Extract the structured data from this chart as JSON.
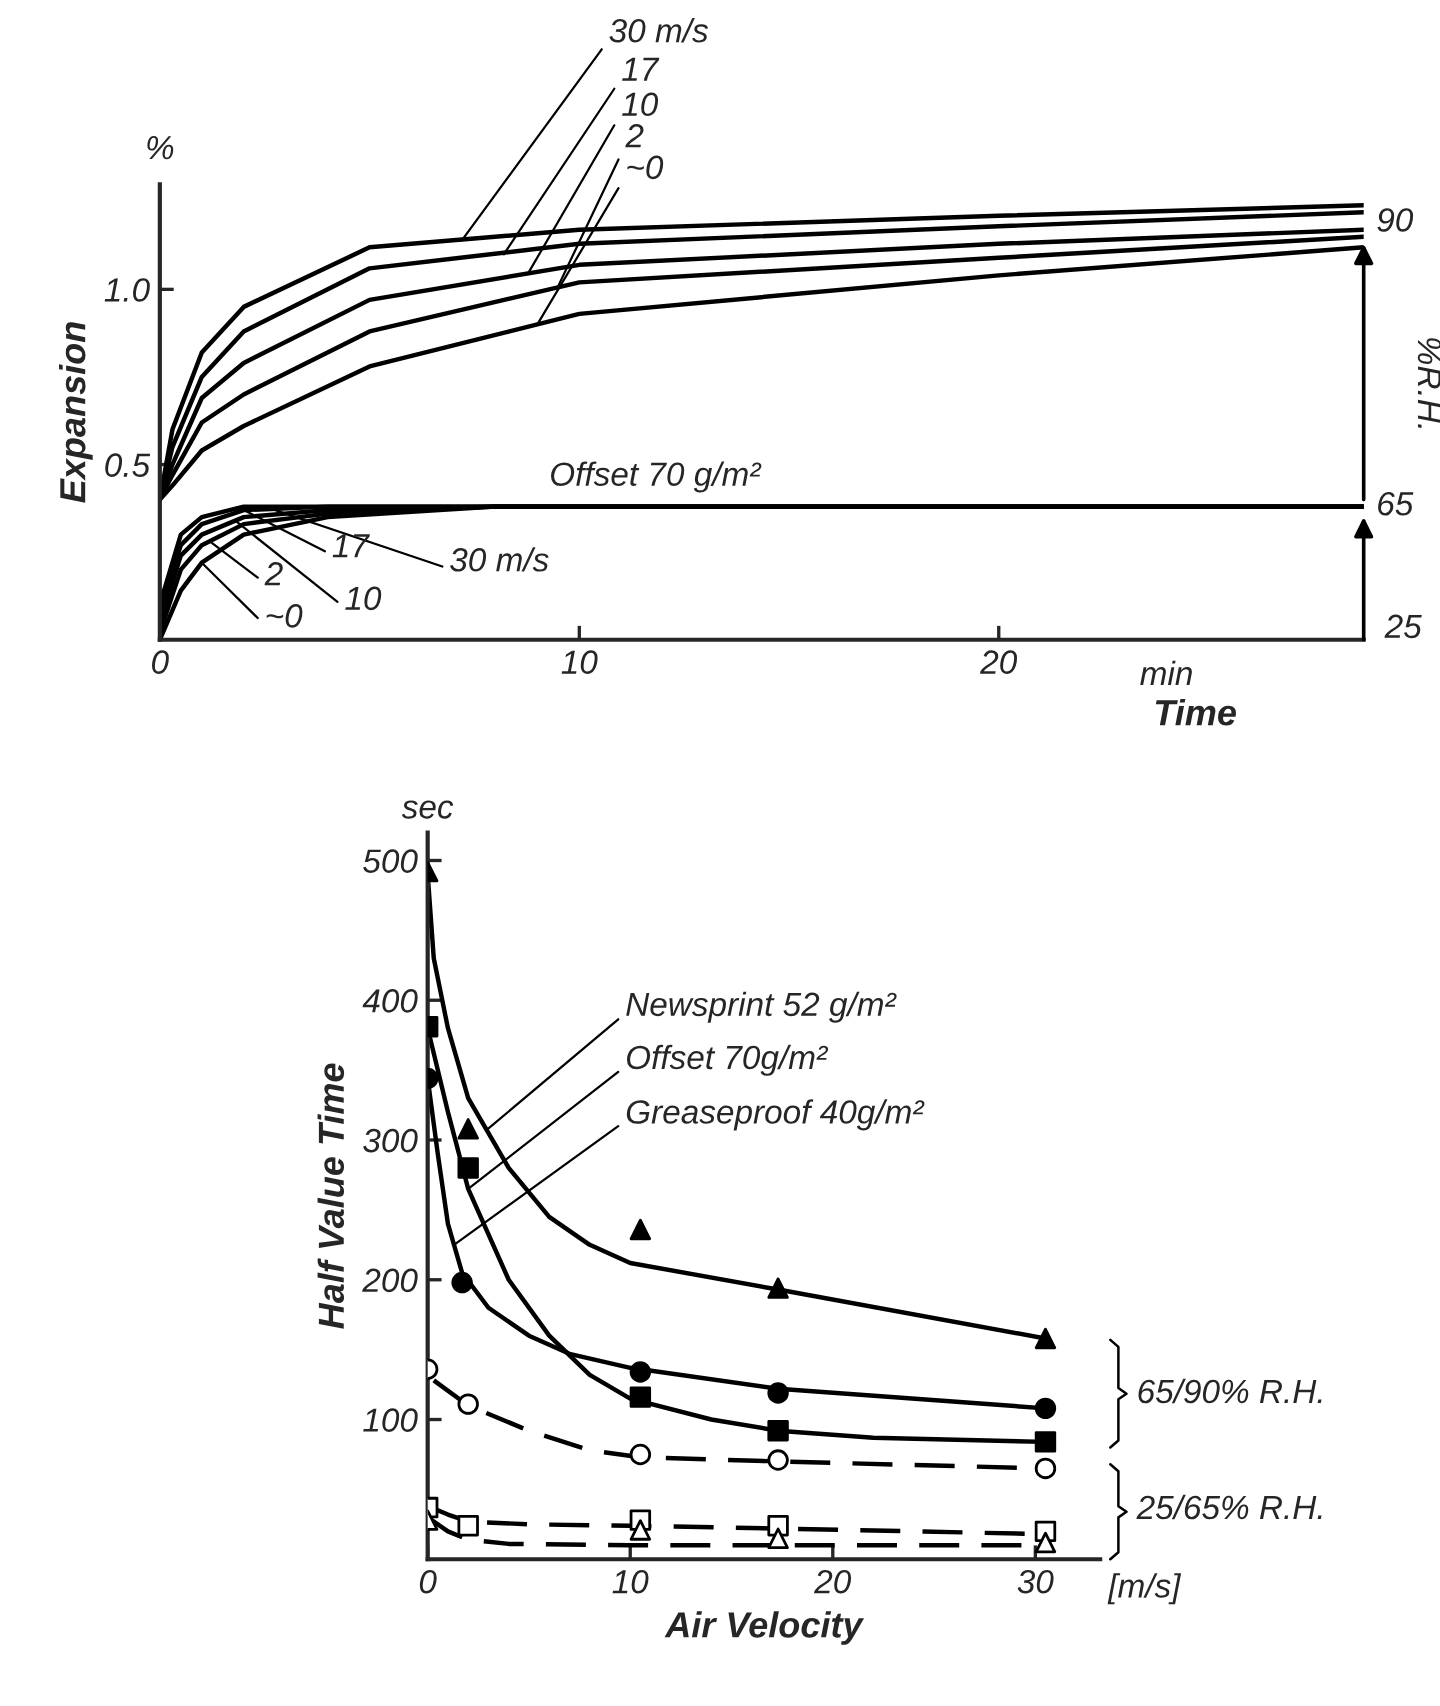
{
  "chart_data": [
    {
      "type": "line",
      "xlabel": "Time",
      "ylabel": "Expansion",
      "xlim": [
        0,
        28.7
      ],
      "ylim": [
        0,
        1.3
      ],
      "xticks": [
        0,
        10,
        20
      ],
      "yticks": [
        0.5,
        {
          "value": 1,
          "label": "1.0"
        }
      ],
      "series": [
        {
          "color": "#000000",
          "x": [
            0,
            0.3,
            1,
            2,
            5,
            10,
            20,
            28.7
          ],
          "values": [
            0.4,
            0.6,
            0.82,
            0.95,
            1.12,
            1.17,
            1.21,
            1.24
          ]
        },
        {
          "color": "#000000",
          "x": [
            0,
            0.3,
            1,
            2,
            5,
            10,
            20,
            28.7
          ],
          "values": [
            0.4,
            0.55,
            0.75,
            0.88,
            1.06,
            1.13,
            1.18,
            1.22
          ]
        },
        {
          "color": "#000000",
          "x": [
            0,
            0.3,
            1,
            2,
            5,
            10,
            20,
            28.7
          ],
          "values": [
            0.4,
            0.5,
            0.69,
            0.79,
            0.97,
            1.07,
            1.13,
            1.17
          ]
        },
        {
          "color": "#000000",
          "x": [
            0,
            0.3,
            1,
            2,
            5,
            10,
            20,
            28.7
          ],
          "values": [
            0.4,
            0.47,
            0.62,
            0.7,
            0.88,
            1.02,
            1.09,
            1.15
          ]
        },
        {
          "color": "#000000",
          "x": [
            0,
            0.3,
            1,
            2,
            5,
            10,
            20,
            28.7
          ],
          "values": [
            0.4,
            0.44,
            0.54,
            0.61,
            0.78,
            0.93,
            1.04,
            1.12
          ]
        },
        {
          "color": "#000000",
          "x": [
            0,
            0.5,
            1,
            2,
            4,
            8,
            28.7
          ],
          "values": [
            0.1,
            0.3,
            0.35,
            0.38,
            0.38,
            0.38,
            0.38
          ]
        },
        {
          "color": "#000000",
          "x": [
            0,
            0.5,
            1,
            2,
            4,
            8,
            28.7
          ],
          "values": [
            0.08,
            0.27,
            0.33,
            0.37,
            0.38,
            0.38,
            0.38
          ]
        },
        {
          "color": "#000000",
          "x": [
            0,
            0.5,
            1,
            2,
            4,
            8,
            28.7
          ],
          "values": [
            0.05,
            0.24,
            0.3,
            0.35,
            0.37,
            0.38,
            0.38
          ]
        },
        {
          "color": "#000000",
          "x": [
            0,
            0.5,
            1,
            2,
            4,
            8,
            28.7
          ],
          "values": [
            0.02,
            0.2,
            0.27,
            0.33,
            0.36,
            0.38,
            0.38
          ]
        },
        {
          "color": "#000000",
          "x": [
            0,
            0.5,
            1,
            2,
            4,
            8,
            28.7
          ],
          "values": [
            0.0,
            0.14,
            0.22,
            0.3,
            0.35,
            0.38,
            0.38
          ]
        }
      ],
      "annotations": [
        "%",
        "Offset 70 g/m²",
        "min",
        {
          "text": "90",
          "x": 28.7,
          "y": 1.13
        },
        {
          "text": "65",
          "x": 28.7,
          "y": 0.35
        },
        "25",
        "%R.H.",
        {
          "text": "30 m/s",
          "x": 7.2,
          "y": 1.14
        },
        {
          "text": "17",
          "x": 8.2,
          "y": 1.1
        },
        {
          "text": "10",
          "x": 8.8,
          "y": 1.05
        },
        {
          "text": "2",
          "x": 9.5,
          "y": 1.01
        },
        {
          "text": "~0",
          "x": 9.0,
          "y": 0.9
        },
        {
          "text": "30 m/s",
          "x": 2.5,
          "y": 0.38
        },
        {
          "text": "17",
          "x": 2.0,
          "y": 0.37
        },
        {
          "text": "10",
          "x": 1.8,
          "y": 0.34
        },
        {
          "text": "2",
          "x": 1.2,
          "y": 0.28
        },
        {
          "text": "~0",
          "x": 1.0,
          "y": 0.22
        }
      ]
    },
    {
      "type": "scatter",
      "xlabel": "Air Velocity",
      "ylabel": "Half Value Time",
      "xlim": [
        0,
        33.2
      ],
      "ylim": [
        0,
        520
      ],
      "xticks": [
        0,
        10,
        20,
        30
      ],
      "yticks": [
        100,
        200,
        300,
        400,
        500
      ],
      "series": [
        {
          "type": "line",
          "line_style": "solid",
          "color": "#000000",
          "x": [
            0,
            0.3,
            1,
            2,
            4,
            6,
            8,
            10,
            17.3,
            30.5
          ],
          "values": [
            490,
            430,
            380,
            330,
            280,
            245,
            225,
            212,
            193,
            158
          ]
        },
        {
          "type": "line",
          "line_style": "solid",
          "color": "#000000",
          "x": [
            0,
            1,
            2,
            4,
            6,
            8,
            10,
            14,
            17.3,
            22,
            30.5
          ],
          "values": [
            380,
            320,
            265,
            200,
            160,
            132,
            115,
            100,
            92,
            87,
            84
          ]
        },
        {
          "type": "line",
          "line_style": "solid",
          "color": "#000000",
          "x": [
            0,
            0.5,
            1,
            1.7,
            3,
            5,
            7,
            10,
            17.3,
            30.5
          ],
          "values": [
            344,
            290,
            240,
            205,
            180,
            160,
            147,
            137,
            122,
            108
          ]
        },
        {
          "type": "line",
          "line_style": "dashed",
          "color": "#000000",
          "x": [
            0.3,
            2,
            5,
            8,
            10.5,
            17.3,
            30.5
          ],
          "values": [
            128,
            110,
            92,
            78,
            73,
            70,
            65
          ]
        },
        {
          "type": "line",
          "line_style": "dashed",
          "color": "#000000",
          "x": [
            0,
            1,
            2,
            5,
            10,
            17.3,
            30.5
          ],
          "values": [
            38,
            32,
            27,
            25,
            24,
            22,
            18
          ]
        },
        {
          "type": "line",
          "line_style": "dashed",
          "color": "#000000",
          "x": [
            0,
            1,
            2,
            4,
            10,
            30.5
          ],
          "values": [
            30,
            20,
            14,
            11,
            10,
            10
          ]
        },
        {
          "marker": "triangle",
          "color": "#000000",
          "x": [
            0,
            2,
            10.5,
            17.3,
            30.5
          ],
          "values": [
            492,
            308,
            236,
            194,
            158
          ]
        },
        {
          "marker": "square",
          "color": "#000000",
          "x": [
            0,
            2,
            10.5,
            17.3,
            30.5
          ],
          "values": [
            381,
            280,
            116,
            92,
            84
          ]
        },
        {
          "marker": "circle",
          "color": "#000000",
          "x": [
            0,
            1.7,
            10.5,
            17.3,
            30.5
          ],
          "values": [
            344,
            198,
            134,
            119,
            108
          ]
        },
        {
          "marker": "circle",
          "color": "#ffffff",
          "x": [
            0,
            2,
            10.5,
            17.3,
            30.5
          ],
          "values": [
            136,
            111,
            75,
            71,
            65
          ]
        },
        {
          "marker": "square",
          "color": "#ffffff",
          "x": [
            0,
            2,
            10.5,
            17.3,
            30.5
          ],
          "values": [
            37,
            24,
            28,
            24,
            20
          ]
        },
        {
          "marker": "triangle",
          "color": "#ffffff",
          "x": [
            0,
            10.5,
            17.3,
            30.5
          ],
          "values": [
            28,
            21,
            15,
            12
          ]
        }
      ],
      "annotations": [
        "sec",
        "[m/s]",
        "65/90% R.H.",
        "25/65% R.H.",
        {
          "text": "Newsprint 52 g/m²",
          "x": 2.9,
          "y": 307
        },
        {
          "text": "Offset 70g/m²",
          "x": 2.0,
          "y": 265
        },
        {
          "text": "Greaseproof 40g/m²",
          "x": 1.3,
          "y": 225
        }
      ]
    }
  ]
}
